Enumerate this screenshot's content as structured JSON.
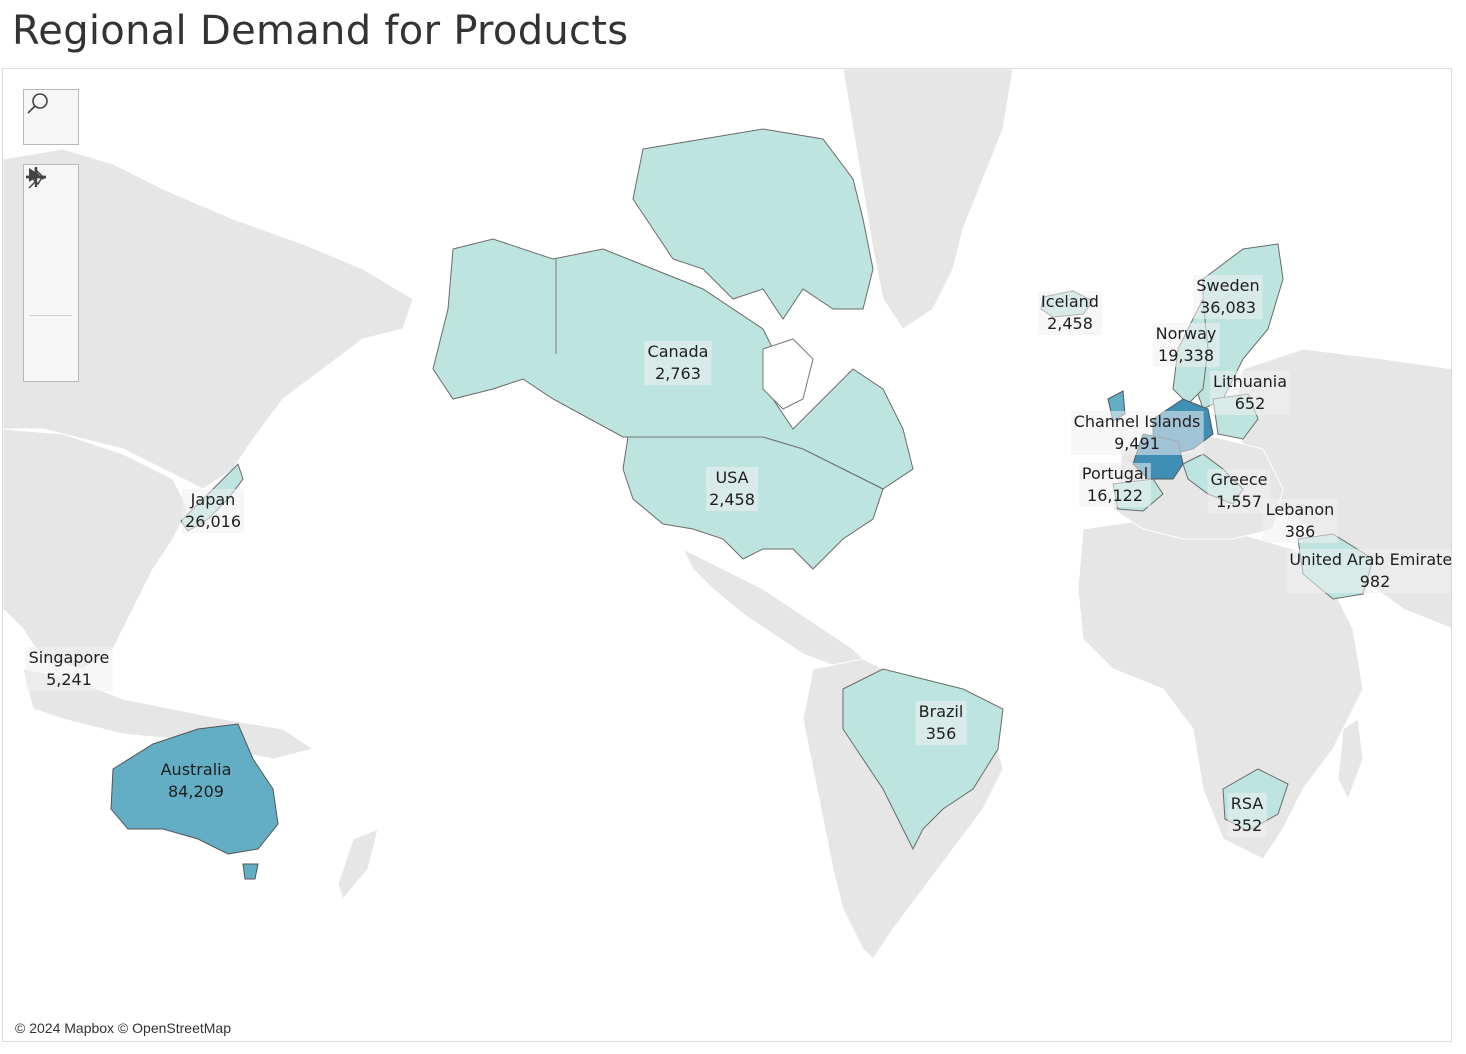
{
  "title": "Regional Demand for Products",
  "attribution": "© 2024 Mapbox © OpenStreetMap",
  "controls": {
    "search": "search-icon",
    "zoom_in": "plus-icon",
    "zoom_out": "minus-icon",
    "pin": "pin-icon",
    "expand": "play-icon"
  },
  "colors": {
    "low": "#bde4de",
    "mid": "#63aec4",
    "high": "#3f8fb5",
    "background_land": "#e6e6e6",
    "water": "#ffffff"
  },
  "regions": [
    {
      "name": "Canada",
      "value": "2,763"
    },
    {
      "name": "USA",
      "value": "2,458"
    },
    {
      "name": "Brazil",
      "value": "356"
    },
    {
      "name": "Iceland",
      "value": "2,458"
    },
    {
      "name": "Sweden",
      "value": "36,083"
    },
    {
      "name": "Norway",
      "value": "19,338"
    },
    {
      "name": "Lithuania",
      "value": "652"
    },
    {
      "name": "Channel Islands",
      "value": "9,491"
    },
    {
      "name": "Portugal",
      "value": "16,122"
    },
    {
      "name": "Greece",
      "value": "1,557"
    },
    {
      "name": "Lebanon",
      "value": "386"
    },
    {
      "name": "United Arab Emirates",
      "value": "982"
    },
    {
      "name": "RSA",
      "value": "352"
    },
    {
      "name": "Japan",
      "value": "26,016"
    },
    {
      "name": "Singapore",
      "value": "5,241"
    },
    {
      "name": "Australia",
      "value": "84,209"
    }
  ]
}
